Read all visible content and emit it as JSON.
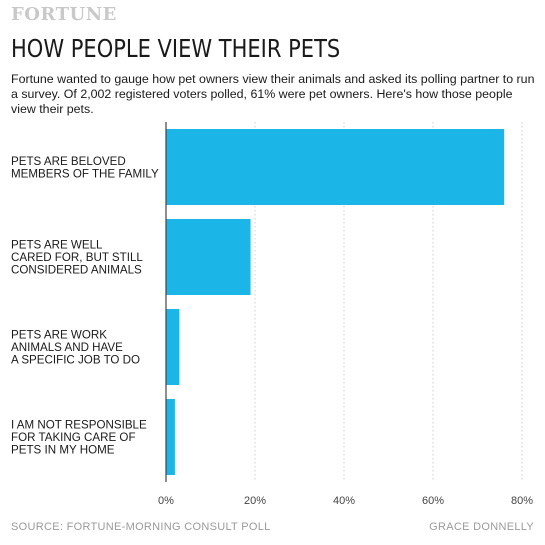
{
  "header": {
    "logo": "FORTUNE",
    "title": "HOW PEOPLE VIEW THEIR PETS",
    "subtitle": "Fortune wanted to gauge how pet owners view their animals and asked its polling partner to run a survey. Of 2,002 registered voters polled, 61% were pet owners. Here's how those people view their pets."
  },
  "footer": {
    "source": "SOURCE: FORTUNE-MORNING CONSULT POLL",
    "credit": "GRACE DONNELLY"
  },
  "colors": {
    "bar": "#1cb5e8",
    "grid": "#cfcfcf",
    "axis": "#444444"
  },
  "chart_data": {
    "type": "bar",
    "orientation": "horizontal",
    "categories": [
      [
        "PETS ARE BELOVED",
        "MEMBERS OF THE FAMILY"
      ],
      [
        "PETS ARE WELL",
        "CARED FOR, BUT STILL",
        "CONSIDERED ANIMALS"
      ],
      [
        "PETS ARE WORK",
        "ANIMALS AND HAVE",
        "A SPECIFIC JOB TO DO"
      ],
      [
        "I AM NOT RESPONSIBLE",
        "FOR TAKING CARE OF",
        "PETS IN MY HOME"
      ]
    ],
    "values": [
      76,
      19,
      3,
      2
    ],
    "xlim": [
      0,
      80
    ],
    "xticks": [
      0,
      20,
      40,
      60,
      80
    ],
    "tick_suffix": "%",
    "grid": true,
    "title": "",
    "xlabel": "",
    "ylabel": ""
  }
}
